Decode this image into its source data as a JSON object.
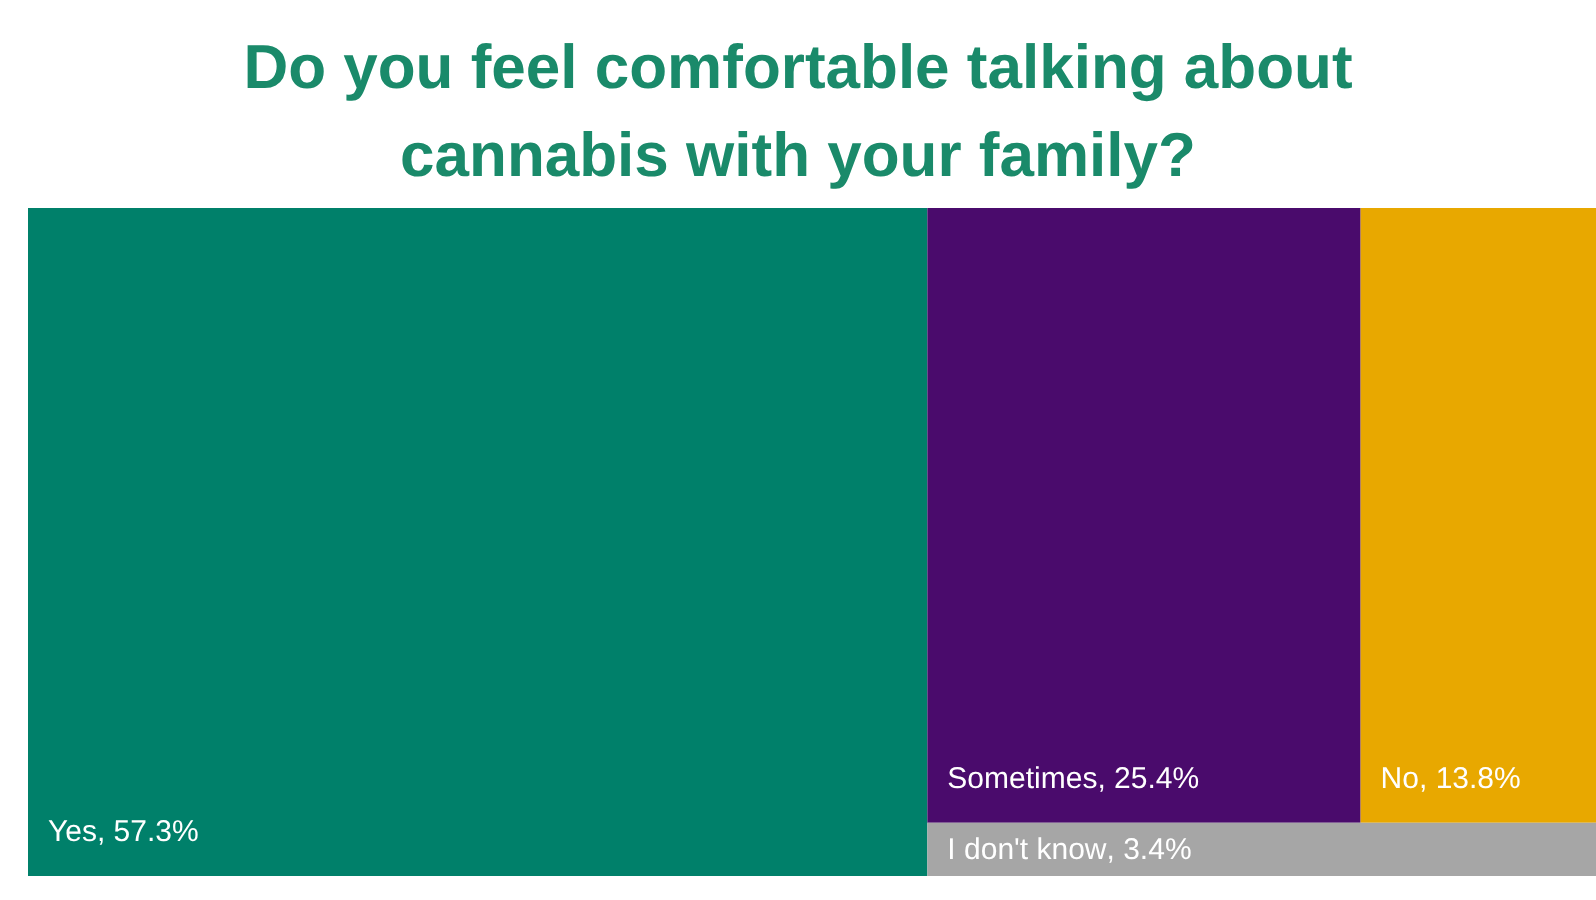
{
  "chart_data": {
    "type": "other",
    "title": "Do you feel comfortable talking about cannabis with your family?",
    "categories": [
      "Yes",
      "Sometimes",
      "No",
      "I don't know"
    ],
    "values": [
      57.3,
      25.4,
      13.8,
      3.4
    ],
    "value_labels": [
      ", 57.3%",
      ", 25.4%",
      ", 13.8%",
      ", 3.4%"
    ],
    "colors": [
      "#00806a",
      "#4a0b6c",
      "#e8a800",
      "#a6a6a6"
    ]
  }
}
